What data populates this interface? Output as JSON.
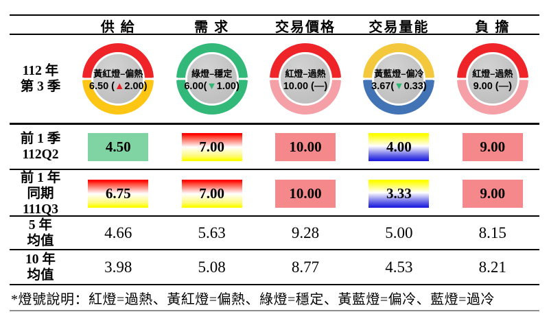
{
  "header": {
    "columns": [
      "供 給",
      "需 求",
      "交易價格",
      "交易量能",
      "負 擔"
    ]
  },
  "current_quarter": {
    "label_lines": [
      "112 年",
      "第 3 季"
    ],
    "donuts": [
      {
        "status": "黃紅燈–偏熱",
        "pre": "6.50 (",
        "mark": "▲",
        "post": "2.00)",
        "mark_color": "#ED1C24",
        "ring_top": "#EE2429",
        "ring_bottom": "#FDC514"
      },
      {
        "status": "綠燈–穩定",
        "pre": "6.00(",
        "mark": "▼",
        "post": "1.00)",
        "mark_color": "#2EB873",
        "ring_top": "#32B878",
        "ring_bottom": "#32B878"
      },
      {
        "status": "紅燈–過熱",
        "pre": "10.00 (",
        "mark": "—",
        "post": ")",
        "mark_color": "#1a1a1a",
        "ring_top": "#EE2429",
        "ring_bottom": "#F5A0A6"
      },
      {
        "status": "黃藍燈–偏冷",
        "pre": "3.67(",
        "mark": "▼",
        "post": "0.33)",
        "mark_color": "#2EB873",
        "ring_top": "#F4C83C",
        "ring_bottom": "#4173B5"
      },
      {
        "status": "紅燈–過熱",
        "pre": "9.00 (",
        "mark": "—",
        "post": ")",
        "mark_color": "#1a1a1a",
        "ring_top": "#EE2429",
        "ring_bottom": "#F5A0A6"
      }
    ]
  },
  "history_rows": [
    {
      "label_lines": [
        "前 1 季",
        "112Q2"
      ],
      "cells": [
        {
          "value": "4.50",
          "style": "green"
        },
        {
          "value": "7.00",
          "style": "red-yellow"
        },
        {
          "value": "10.00",
          "style": "salmon"
        },
        {
          "value": "4.00",
          "style": "yellow-blue"
        },
        {
          "value": "9.00",
          "style": "salmon"
        }
      ]
    },
    {
      "label_lines": [
        "前 1 年",
        "同期",
        "111Q3"
      ],
      "cells": [
        {
          "value": "6.75",
          "style": "red-yellow"
        },
        {
          "value": "7.00",
          "style": "red-yellow"
        },
        {
          "value": "10.00",
          "style": "salmon"
        },
        {
          "value": "3.33",
          "style": "yellow-blue"
        },
        {
          "value": "9.00",
          "style": "salmon"
        }
      ]
    }
  ],
  "average_rows": [
    {
      "label_lines": [
        "5 年",
        "均值"
      ],
      "values": [
        "4.66",
        "5.63",
        "9.28",
        "5.00",
        "8.15"
      ]
    },
    {
      "label_lines": [
        "10 年",
        "均值"
      ],
      "values": [
        "3.98",
        "5.08",
        "8.77",
        "4.53",
        "8.21"
      ]
    }
  ],
  "footnote": {
    "text": "*燈號說明：紅燈=過熱、黃紅燈=偏熱、綠燈=穩定、黃藍燈=偏冷、藍燈=過冷"
  },
  "colors": {
    "ring_red": "#EE2429",
    "ring_gold": "#FDC514",
    "ring_green": "#32B878",
    "ring_pink": "#F5A0A6",
    "ring_yellow": "#F4C83C",
    "ring_blue": "#4173B5",
    "box_salmon": "#F4888A",
    "box_green": "#80D3A2",
    "arrow_up_red": "#ED1C24",
    "arrow_down_green": "#2EB873"
  },
  "chart_data": {
    "type": "table",
    "title": "房市燈號指標表 112年第3季",
    "columns": [
      "供給",
      "需求",
      "交易價格",
      "交易量能",
      "負擔"
    ],
    "rows": [
      {
        "label": "112年第3季",
        "values": [
          6.5,
          6.0,
          10.0,
          3.67,
          9.0
        ],
        "lights": [
          "黃紅燈-偏熱",
          "綠燈-穩定",
          "紅燈-過熱",
          "黃藍燈-偏冷",
          "紅燈-過熱"
        ],
        "changes": [
          2.0,
          -1.0,
          0,
          -0.33,
          0
        ]
      },
      {
        "label": "前1季112Q2",
        "values": [
          4.5,
          7.0,
          10.0,
          4.0,
          9.0
        ]
      },
      {
        "label": "前1年同期111Q3",
        "values": [
          6.75,
          7.0,
          10.0,
          3.33,
          9.0
        ]
      },
      {
        "label": "5年均值",
        "values": [
          4.66,
          5.63,
          9.28,
          5.0,
          8.15
        ]
      },
      {
        "label": "10年均值",
        "values": [
          3.98,
          5.08,
          8.77,
          4.53,
          8.21
        ]
      }
    ],
    "legend": "紅燈=過熱、黃紅燈=偏熱、綠燈=穩定、黃藍燈=偏冷、藍燈=過冷"
  }
}
